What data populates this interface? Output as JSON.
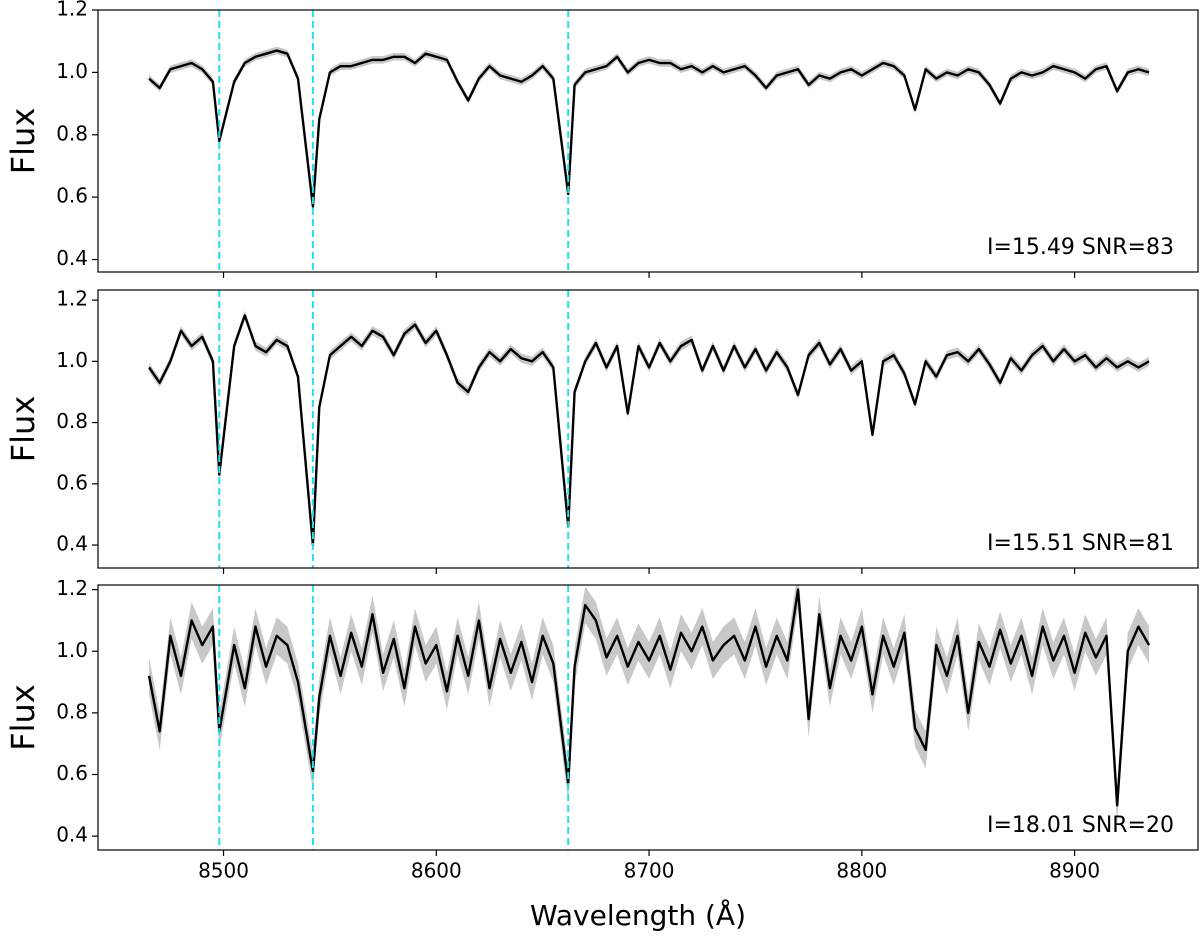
{
  "chart_data": [
    {
      "type": "line",
      "ylabel": "Flux",
      "annotation": "I=15.49  SNR=83",
      "xlim": [
        8441,
        8958
      ],
      "xticks": [
        8500,
        8600,
        8700,
        8800,
        8900
      ],
      "ylim": [
        0.36,
        1.2
      ],
      "yticks": [
        0.4,
        0.6,
        0.8,
        {
          "value": 1,
          "label": "1.0"
        },
        1.2
      ],
      "vlines": [
        8498,
        8542,
        8662
      ],
      "vline_color": "#22e0f0",
      "error": 0.012,
      "band_color": "#c8c8c8",
      "x": [
        8465,
        8470,
        8475,
        8480,
        8485,
        8490,
        8495,
        8498,
        8505,
        8510,
        8515,
        8520,
        8525,
        8530,
        8535,
        8542,
        8545,
        8550,
        8555,
        8560,
        8565,
        8570,
        8575,
        8580,
        8585,
        8590,
        8595,
        8600,
        8605,
        8610,
        8615,
        8620,
        8625,
        8630,
        8635,
        8640,
        8645,
        8650,
        8655,
        8662,
        8665,
        8670,
        8675,
        8680,
        8685,
        8690,
        8695,
        8700,
        8705,
        8710,
        8715,
        8720,
        8725,
        8730,
        8735,
        8740,
        8745,
        8750,
        8755,
        8760,
        8765,
        8770,
        8775,
        8780,
        8785,
        8790,
        8795,
        8800,
        8805,
        8810,
        8815,
        8820,
        8825,
        8830,
        8835,
        8840,
        8845,
        8850,
        8855,
        8860,
        8865,
        8870,
        8875,
        8880,
        8885,
        8890,
        8895,
        8900,
        8905,
        8910,
        8915,
        8920,
        8925,
        8930,
        8935
      ],
      "series": [
        {
          "color": "#000000",
          "values": [
            0.98,
            0.95,
            1.01,
            1.02,
            1.03,
            1.01,
            0.97,
            0.78,
            0.97,
            1.03,
            1.05,
            1.06,
            1.07,
            1.06,
            0.98,
            0.57,
            0.85,
            1.0,
            1.02,
            1.02,
            1.03,
            1.04,
            1.04,
            1.05,
            1.05,
            1.03,
            1.06,
            1.05,
            1.04,
            0.97,
            0.91,
            0.98,
            1.02,
            0.99,
            0.98,
            0.97,
            0.99,
            1.02,
            0.98,
            0.61,
            0.96,
            1.0,
            1.01,
            1.02,
            1.05,
            1.0,
            1.03,
            1.04,
            1.03,
            1.03,
            1.01,
            1.02,
            1.0,
            1.02,
            1.0,
            1.01,
            1.02,
            0.99,
            0.95,
            0.99,
            1.0,
            1.01,
            0.96,
            0.99,
            0.98,
            1.0,
            1.01,
            0.99,
            1.01,
            1.03,
            1.02,
            0.99,
            0.88,
            1.01,
            0.98,
            1.0,
            0.99,
            1.01,
            1.0,
            0.96,
            0.9,
            0.98,
            1.0,
            0.99,
            1.0,
            1.02,
            1.01,
            1.0,
            0.98,
            1.01,
            1.02,
            0.94,
            1.0,
            1.01,
            1.0
          ]
        }
      ]
    },
    {
      "type": "line",
      "ylabel": "Flux",
      "annotation": "I=15.51  SNR=81",
      "xlim": [
        8441,
        8958
      ],
      "xticks": [
        8500,
        8600,
        8700,
        8800,
        8900
      ],
      "ylim": [
        0.325,
        1.233
      ],
      "yticks": [
        0.4,
        0.6,
        0.8,
        {
          "value": 1,
          "label": "1.0"
        },
        1.2
      ],
      "vlines": [
        8498,
        8542,
        8662
      ],
      "vline_color": "#22e0f0",
      "error": 0.015,
      "band_color": "#c8c8c8",
      "x": [
        8465,
        8470,
        8475,
        8480,
        8485,
        8490,
        8495,
        8498,
        8505,
        8510,
        8515,
        8520,
        8525,
        8530,
        8535,
        8542,
        8545,
        8550,
        8555,
        8560,
        8565,
        8570,
        8575,
        8580,
        8585,
        8590,
        8595,
        8600,
        8605,
        8610,
        8615,
        8620,
        8625,
        8630,
        8635,
        8640,
        8645,
        8650,
        8655,
        8662,
        8665,
        8670,
        8675,
        8680,
        8685,
        8690,
        8695,
        8700,
        8705,
        8710,
        8715,
        8720,
        8725,
        8730,
        8735,
        8740,
        8745,
        8750,
        8755,
        8760,
        8765,
        8770,
        8775,
        8780,
        8785,
        8790,
        8795,
        8800,
        8805,
        8810,
        8815,
        8820,
        8825,
        8830,
        8835,
        8840,
        8845,
        8850,
        8855,
        8860,
        8865,
        8870,
        8875,
        8880,
        8885,
        8890,
        8895,
        8900,
        8905,
        8910,
        8915,
        8920,
        8925,
        8930,
        8935
      ],
      "series": [
        {
          "color": "#000000",
          "values": [
            0.98,
            0.93,
            1.0,
            1.1,
            1.05,
            1.08,
            1.0,
            0.63,
            1.05,
            1.15,
            1.05,
            1.03,
            1.07,
            1.05,
            0.95,
            0.4,
            0.85,
            1.02,
            1.05,
            1.08,
            1.05,
            1.1,
            1.08,
            1.02,
            1.09,
            1.12,
            1.06,
            1.1,
            1.02,
            0.93,
            0.9,
            0.98,
            1.03,
            1.0,
            1.04,
            1.01,
            1.0,
            1.03,
            0.98,
            0.46,
            0.9,
            1.0,
            1.06,
            0.98,
            1.05,
            0.83,
            1.05,
            0.98,
            1.06,
            1.0,
            1.05,
            1.07,
            0.97,
            1.05,
            0.97,
            1.05,
            0.98,
            1.04,
            0.97,
            1.03,
            0.98,
            0.89,
            1.02,
            1.06,
            0.99,
            1.04,
            0.97,
            1.0,
            0.76,
            1.0,
            1.02,
            0.96,
            0.86,
            1.0,
            0.95,
            1.02,
            1.03,
            1.0,
            1.04,
            0.99,
            0.93,
            1.01,
            0.97,
            1.02,
            1.05,
            1.0,
            1.04,
            1.0,
            1.02,
            0.98,
            1.01,
            0.98,
            1.0,
            0.98,
            1.0
          ]
        }
      ]
    },
    {
      "type": "line",
      "ylabel": "Flux",
      "xlabel": "Wavelength (Å)",
      "annotation": "I=18.01  SNR=20",
      "xlim": [
        8441,
        8958
      ],
      "xticks": [
        8500,
        8600,
        8700,
        8800,
        8900
      ],
      "ylim": [
        0.355,
        1.215
      ],
      "yticks": [
        0.4,
        0.6,
        0.8,
        {
          "value": 1,
          "label": "1.0"
        },
        1.2
      ],
      "vlines": [
        8498,
        8542,
        8662
      ],
      "vline_color": "#22e0f0",
      "error": 0.06,
      "band_color": "#c8c8c8",
      "x": [
        8465,
        8470,
        8475,
        8480,
        8485,
        8490,
        8495,
        8498,
        8505,
        8510,
        8515,
        8520,
        8525,
        8530,
        8535,
        8542,
        8545,
        8550,
        8555,
        8560,
        8565,
        8570,
        8575,
        8580,
        8585,
        8590,
        8595,
        8600,
        8605,
        8610,
        8615,
        8620,
        8625,
        8630,
        8635,
        8640,
        8645,
        8650,
        8655,
        8662,
        8665,
        8670,
        8675,
        8680,
        8685,
        8690,
        8695,
        8700,
        8705,
        8710,
        8715,
        8720,
        8725,
        8730,
        8735,
        8740,
        8745,
        8750,
        8755,
        8760,
        8765,
        8770,
        8775,
        8780,
        8785,
        8790,
        8795,
        8800,
        8805,
        8810,
        8815,
        8820,
        8825,
        8830,
        8835,
        8840,
        8845,
        8850,
        8855,
        8860,
        8865,
        8870,
        8875,
        8880,
        8885,
        8890,
        8895,
        8900,
        8905,
        8910,
        8915,
        8920,
        8925,
        8930,
        8935
      ],
      "series": [
        {
          "color": "#000000",
          "values": [
            0.92,
            0.74,
            1.05,
            0.92,
            1.1,
            1.02,
            1.08,
            0.74,
            1.02,
            0.88,
            1.08,
            0.95,
            1.05,
            1.02,
            0.9,
            0.61,
            0.85,
            1.05,
            0.92,
            1.06,
            0.95,
            1.12,
            0.93,
            1.04,
            0.88,
            1.08,
            0.96,
            1.02,
            0.87,
            1.05,
            0.92,
            1.1,
            0.88,
            1.04,
            0.93,
            1.03,
            0.9,
            1.05,
            0.96,
            0.57,
            0.95,
            1.15,
            1.1,
            0.98,
            1.05,
            0.95,
            1.03,
            0.97,
            1.05,
            0.94,
            1.06,
            1.0,
            1.08,
            0.97,
            1.02,
            1.05,
            0.97,
            1.08,
            0.95,
            1.05,
            0.97,
            1.2,
            0.78,
            1.12,
            0.88,
            1.05,
            0.97,
            1.08,
            0.86,
            1.05,
            0.95,
            1.06,
            0.75,
            0.68,
            1.02,
            0.92,
            1.05,
            0.8,
            1.03,
            0.95,
            1.07,
            0.96,
            1.05,
            0.92,
            1.08,
            0.97,
            1.05,
            0.93,
            1.06,
            0.98,
            1.05,
            0.5,
            1.0,
            1.08,
            1.02
          ]
        }
      ]
    }
  ]
}
